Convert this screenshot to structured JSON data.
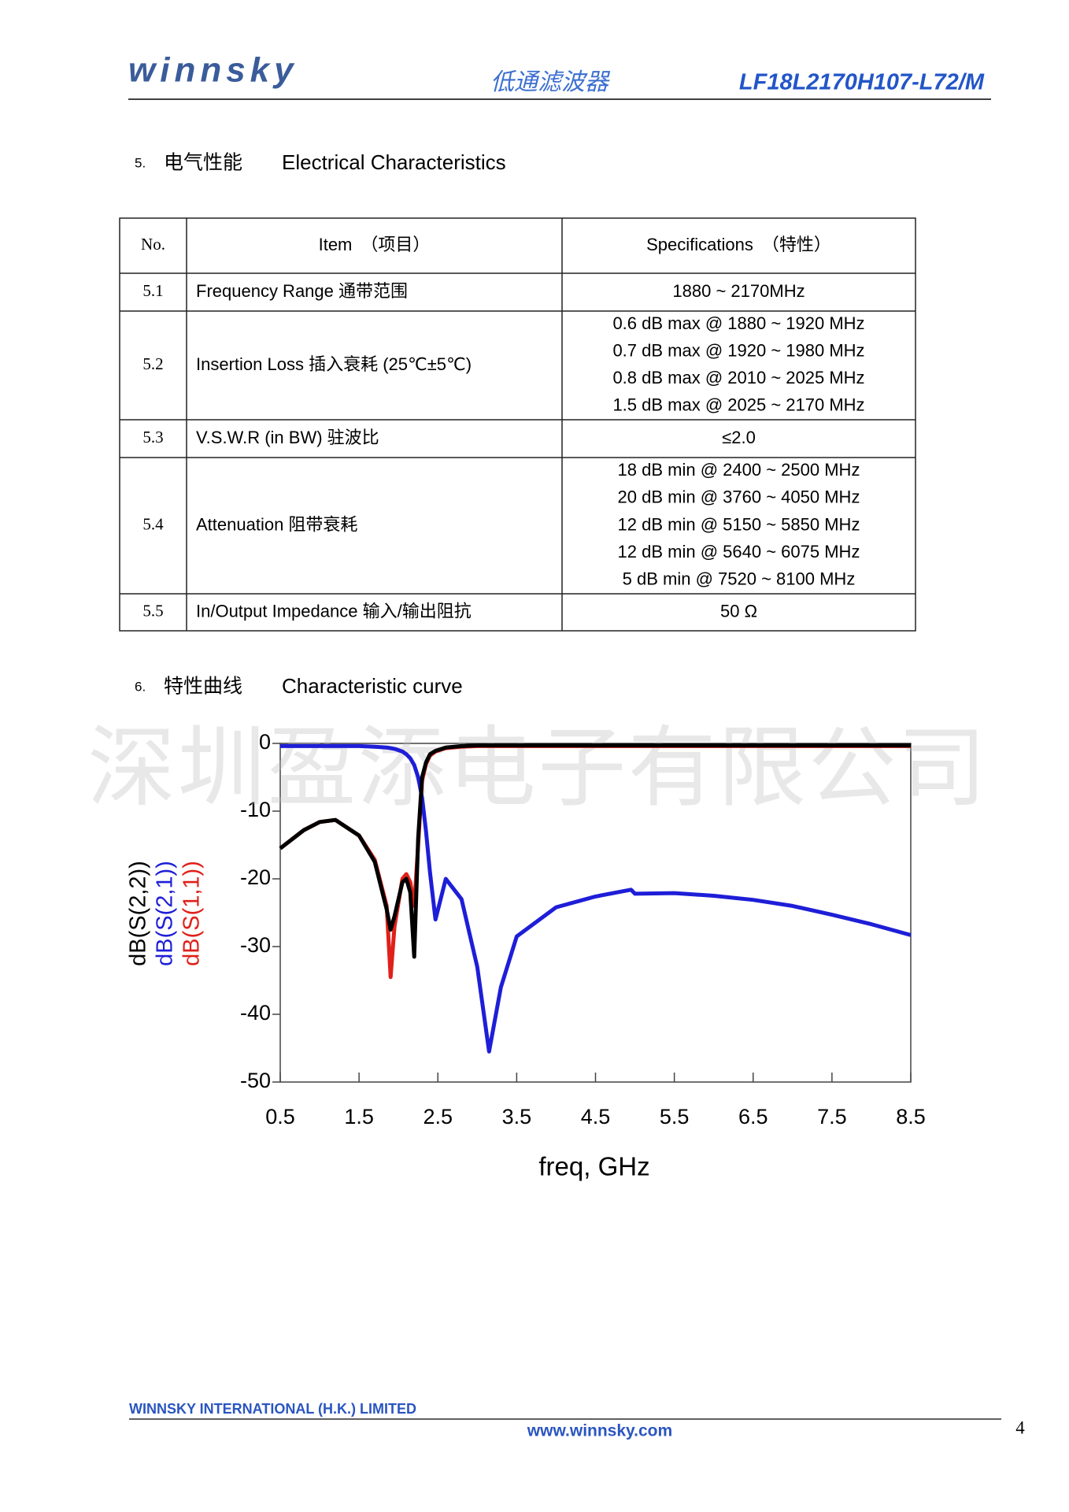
{
  "header": {
    "logo": "winnsky",
    "title_cn": "低通滤波器",
    "part_number": "LF18L2170H107-L72/M"
  },
  "section5": {
    "number": "5.",
    "title_cn": "电气性能",
    "title_en": "Electrical Characteristics"
  },
  "table": {
    "columns": [
      "No.",
      "Item　（项目）",
      "Specifications　（特性）"
    ],
    "rows": [
      {
        "no": "5.1",
        "item": "Frequency Range  通带范围",
        "spec": [
          "1880 ~ 2170MHz"
        ]
      },
      {
        "no": "5.2",
        "item": "Insertion Loss  插入衰耗  (25℃±5℃)",
        "spec": [
          "0.6 dB max @ 1880 ~ 1920 MHz",
          "0.7 dB max @ 1920 ~ 1980 MHz",
          "0.8 dB max @ 2010 ~ 2025 MHz",
          "1.5 dB max @ 2025 ~ 2170 MHz"
        ]
      },
      {
        "no": "5.3",
        "item": "V.S.W.R (in BW)      驻波比",
        "spec": [
          "≤2.0"
        ]
      },
      {
        "no": "5.4",
        "item": "Attenuation          阻带衰耗",
        "spec": [
          "18 dB min @ 2400 ~ 2500 MHz",
          "20 dB min @ 3760 ~ 4050 MHz",
          "12 dB min @ 5150 ~ 5850 MHz",
          "12 dB min @ 5640 ~ 6075 MHz",
          "5 dB min @ 7520 ~ 8100 MHz"
        ]
      },
      {
        "no": "5.5",
        "item": "In/Output Impedance  输入/输出阻抗",
        "spec": [
          "50  Ω"
        ]
      }
    ]
  },
  "section6": {
    "number": "6.",
    "title_cn": "特性曲线",
    "title_en": "Characteristic curve"
  },
  "watermark": "深圳盈添电子有限公司",
  "chart_data": {
    "type": "line",
    "x_label": "freq, GHz",
    "x": [
      0.5,
      0.8,
      1.0,
      1.2,
      1.5,
      1.7,
      1.85,
      1.9,
      1.95,
      2.05,
      2.1,
      2.15,
      2.2,
      2.25,
      2.3,
      2.35,
      2.4,
      2.47,
      2.6,
      2.8,
      3.0,
      3.15,
      3.3,
      3.5,
      4.0,
      4.5,
      4.95,
      5.0,
      5.5,
      6.0,
      6.5,
      7.0,
      7.5,
      8.0,
      8.5
    ],
    "series": [
      {
        "name": "dB(S(2,2))",
        "color": "#000000",
        "values": [
          -15.5,
          -12.8,
          -11.6,
          -11.3,
          -13.6,
          -17.5,
          -24.5,
          -27.5,
          -25.5,
          -20.5,
          -20,
          -22,
          -31.5,
          -14,
          -5,
          -2.8,
          -1.6,
          -1.1,
          -0.6,
          -0.4,
          -0.3,
          -0.3,
          -0.3,
          -0.3,
          -0.3,
          -0.3,
          -0.3,
          -0.3,
          -0.3,
          -0.3,
          -0.3,
          -0.3,
          -0.3,
          -0.3,
          -0.3
        ]
      },
      {
        "name": "dB(S(2,1))",
        "color": "#1e1ed8",
        "values": [
          -0.4,
          -0.4,
          -0.4,
          -0.4,
          -0.4,
          -0.5,
          -0.6,
          -0.7,
          -0.8,
          -1.2,
          -1.6,
          -2.2,
          -3.2,
          -5,
          -8,
          -13,
          -19,
          -26,
          -20,
          -23,
          -33,
          -45.5,
          -36,
          -28.5,
          -24.2,
          -22.6,
          -21.6,
          -22.2,
          -22.1,
          -22.5,
          -23.1,
          -24,
          -25.3,
          -26.7,
          -28.3
        ]
      },
      {
        "name": "dB(S(1,1))",
        "color": "#e0201a",
        "values": [
          -15.5,
          -12.8,
          -11.6,
          -11.3,
          -13.6,
          -17.2,
          -24,
          -34.5,
          -27,
          -20,
          -19.3,
          -20.5,
          -24,
          -15,
          -5.5,
          -3,
          -1.8,
          -1.2,
          -0.7,
          -0.5,
          -0.4,
          -0.4,
          -0.4,
          -0.4,
          -0.4,
          -0.4,
          -0.4,
          -0.4,
          -0.4,
          -0.4,
          -0.4,
          -0.4,
          -0.4,
          -0.4,
          -0.4
        ]
      }
    ],
    "xlim": [
      0.5,
      8.5
    ],
    "ylim": [
      -50,
      0
    ],
    "xticks": [
      0.5,
      1.5,
      2.5,
      3.5,
      4.5,
      5.5,
      6.5,
      7.5,
      8.5
    ],
    "yticks": [
      0,
      -10,
      -20,
      -30,
      -40,
      -50
    ]
  },
  "footer": {
    "company": "WINNSKY INTERNATIONAL (H.K.) LIMITED",
    "website": "www.winnsky.com",
    "page": "4"
  }
}
